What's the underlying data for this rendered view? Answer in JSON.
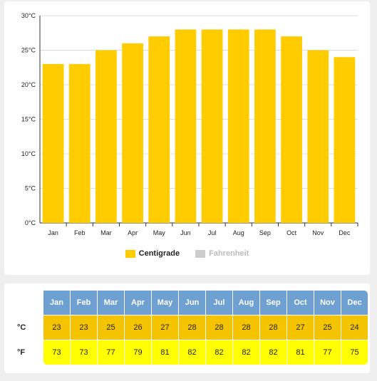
{
  "colors": {
    "centigrade": "#ffcc00",
    "fahrenheit": "#cccccc",
    "month_header": "#6fa0d2",
    "celsius_row": "#f5c400",
    "fahrenheit_row": "#ffff00"
  },
  "chart_data": {
    "type": "bar",
    "categories": [
      "Jan",
      "Feb",
      "Mar",
      "Apr",
      "May",
      "Jun",
      "Jul",
      "Aug",
      "Sep",
      "Oct",
      "Nov",
      "Dec"
    ],
    "series": [
      {
        "name": "Centigrade",
        "values": [
          23,
          23,
          25,
          26,
          27,
          28,
          28,
          28,
          28,
          27,
          25,
          24
        ],
        "visible": true
      },
      {
        "name": "Fahrenheit",
        "values": [
          73,
          73,
          77,
          79,
          81,
          82,
          82,
          82,
          82,
          81,
          77,
          75
        ],
        "visible": false
      }
    ],
    "ylim": [
      0,
      30
    ],
    "yticks": [
      "0°C",
      "5°C",
      "10°C",
      "15°C",
      "20°C",
      "25°C",
      "30°C"
    ],
    "ytick_values": [
      0,
      5,
      10,
      15,
      20,
      25,
      30
    ],
    "grid": true,
    "legend_placement": "bottom-center"
  },
  "table": {
    "months": [
      "Jan",
      "Feb",
      "Mar",
      "Apr",
      "May",
      "Jun",
      "Jul",
      "Aug",
      "Sep",
      "Oct",
      "Nov",
      "Dec"
    ],
    "rows": [
      {
        "label": "°C",
        "values": [
          "23",
          "23",
          "25",
          "26",
          "27",
          "28",
          "28",
          "28",
          "28",
          "27",
          "25",
          "24"
        ]
      },
      {
        "label": "°F",
        "values": [
          "73",
          "73",
          "77",
          "79",
          "81",
          "82",
          "82",
          "82",
          "82",
          "81",
          "77",
          "75"
        ]
      }
    ]
  }
}
